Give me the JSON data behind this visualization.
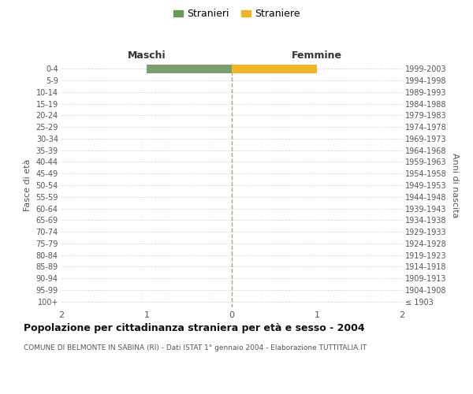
{
  "age_groups": [
    "100+",
    "95-99",
    "90-94",
    "85-89",
    "80-84",
    "75-79",
    "70-74",
    "65-69",
    "60-64",
    "55-59",
    "50-54",
    "45-49",
    "40-44",
    "35-39",
    "30-34",
    "25-29",
    "20-24",
    "15-19",
    "10-14",
    "5-9",
    "0-4"
  ],
  "birth_years": [
    "≤ 1903",
    "1904-1908",
    "1909-1913",
    "1914-1918",
    "1919-1923",
    "1924-1928",
    "1929-1933",
    "1934-1938",
    "1939-1943",
    "1944-1948",
    "1949-1953",
    "1954-1958",
    "1959-1963",
    "1964-1968",
    "1969-1973",
    "1974-1978",
    "1979-1983",
    "1984-1988",
    "1989-1993",
    "1994-1998",
    "1999-2003"
  ],
  "males": [
    0,
    0,
    0,
    0,
    0,
    0,
    0,
    0,
    0,
    0,
    0,
    0,
    0,
    0,
    0,
    0,
    0,
    0,
    0,
    0,
    1
  ],
  "females": [
    0,
    0,
    0,
    0,
    0,
    0,
    0,
    0,
    0,
    0,
    0,
    0,
    0,
    0,
    0,
    0,
    0,
    0,
    0,
    0,
    1
  ],
  "male_color": "#7a9e6e",
  "female_color": "#f0b429",
  "xlim": 2,
  "title": "Popolazione per cittadinanza straniera per età e sesso - 2004",
  "subtitle": "COMUNE DI BELMONTE IN SABINA (RI) - Dati ISTAT 1° gennaio 2004 - Elaborazione TUTTITALIA.IT",
  "ylabel_left": "Fasce di età",
  "ylabel_right": "Anni di nascita",
  "header_maschi": "Maschi",
  "header_femmine": "Femmine",
  "legend_maschi": "Stranieri",
  "legend_femmine": "Straniere",
  "legend_color_m": "#6a9a5a",
  "legend_color_f": "#f0b429",
  "bg_color": "#ffffff",
  "grid_color": "#cccccc"
}
